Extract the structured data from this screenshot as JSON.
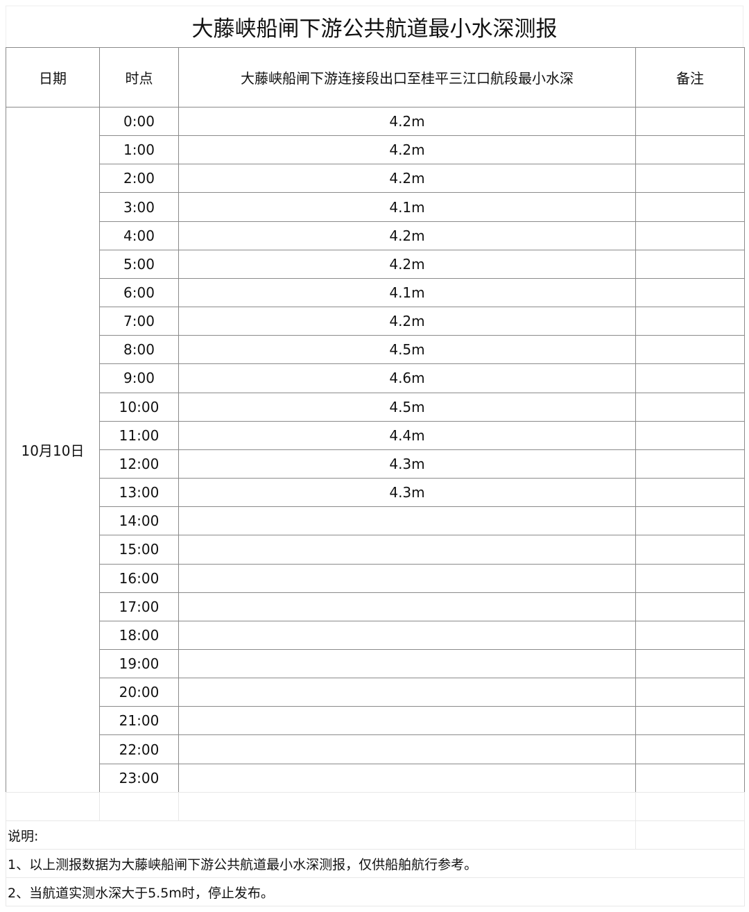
{
  "title": "大藤峡船闸下游公共航道最小水深测报",
  "headers": {
    "date": "日期",
    "time": "时点",
    "depth": "大藤峡船闸下游连接段出口至桂平三江口航段最小水深",
    "remarks": "备注"
  },
  "date": "10月10日",
  "rows": [
    {
      "time": "0:00",
      "depth": "4.2m"
    },
    {
      "time": "1:00",
      "depth": "4.2m"
    },
    {
      "time": "2:00",
      "depth": "4.2m"
    },
    {
      "time": "3:00",
      "depth": "4.1m"
    },
    {
      "time": "4:00",
      "depth": "4.2m"
    },
    {
      "time": "5:00",
      "depth": "4.2m"
    },
    {
      "time": "6:00",
      "depth": "4.1m"
    },
    {
      "time": "7:00",
      "depth": "4.2m"
    },
    {
      "time": "8:00",
      "depth": "4.5m"
    },
    {
      "time": "9:00",
      "depth": "4.6m"
    },
    {
      "time": "10:00",
      "depth": "4.5m"
    },
    {
      "time": "11:00",
      "depth": "4.4m"
    },
    {
      "time": "12:00",
      "depth": "4.3m"
    },
    {
      "time": "13:00",
      "depth": "4.3m"
    },
    {
      "time": "14:00",
      "depth": ""
    },
    {
      "time": "15:00",
      "depth": ""
    },
    {
      "time": "16:00",
      "depth": ""
    },
    {
      "time": "17:00",
      "depth": ""
    },
    {
      "time": "18:00",
      "depth": ""
    },
    {
      "time": "19:00",
      "depth": ""
    },
    {
      "time": "20:00",
      "depth": ""
    },
    {
      "time": "21:00",
      "depth": ""
    },
    {
      "time": "22:00",
      "depth": ""
    },
    {
      "time": "23:00",
      "depth": ""
    }
  ],
  "notes": {
    "heading": "说明:",
    "items": [
      "1、以上测报数据为大藤峡船闸下游公共航道最小水深测报，仅供船舶航行参考。",
      "2、当航道实测水深大于5.5m时，停止发布。"
    ]
  }
}
